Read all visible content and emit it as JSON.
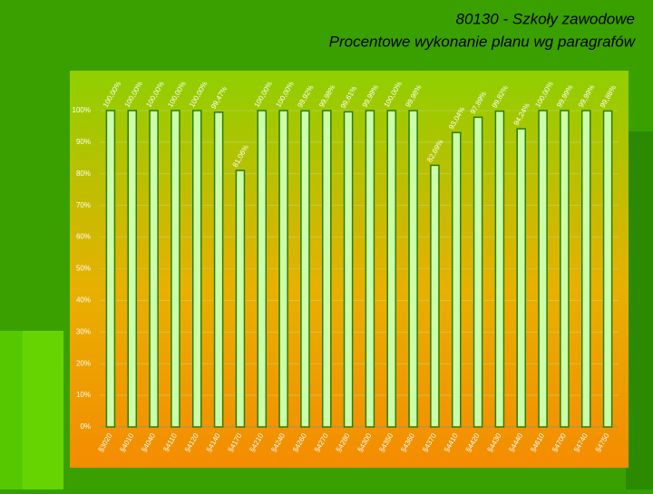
{
  "chart_data": {
    "type": "bar",
    "title": "80130 - Szkoły zawodowe",
    "subtitle": "Procentowe wykonanie planu wg paragrafów",
    "categories": [
      "§3020",
      "§4010",
      "§4040",
      "§4110",
      "§4120",
      "§4140",
      "§4170",
      "§4210",
      "§4240",
      "§4260",
      "§4270",
      "§4280",
      "§4300",
      "§4350",
      "§4360",
      "§4370",
      "§4410",
      "§4420",
      "§4430",
      "§4440",
      "§4610",
      "§4700",
      "§4740",
      "§4750"
    ],
    "values": [
      100,
      100,
      100,
      100,
      100,
      99.47,
      81.06,
      100,
      100,
      99.92,
      99.98,
      99.61,
      99.99,
      100,
      99.98,
      82.69,
      93.04,
      97.89,
      99.82,
      94.24,
      100,
      99.99,
      99.99,
      99.88
    ],
    "value_labels": [
      "100,00%",
      "100,00%",
      "100,00%",
      "100,00%",
      "100,00%",
      "99,47%",
      "81,06%",
      "100,00%",
      "100,00%",
      "99,92%",
      "99,98%",
      "99,61%",
      "99,99%",
      "100,00%",
      "99,98%",
      "82,69%",
      "93,04%",
      "97,89%",
      "99,82%",
      "94,24%",
      "100,00%",
      "99,99%",
      "99,99%",
      "99,88%"
    ],
    "color": "#ccffaa",
    "ylim": [
      0,
      100
    ],
    "yticks": [
      {
        "value": 0,
        "label": "0%"
      },
      {
        "value": 10,
        "label": "10%"
      },
      {
        "value": 20,
        "label": "20%"
      },
      {
        "value": 30,
        "label": "30%"
      },
      {
        "value": 40,
        "label": "40%"
      },
      {
        "value": 50,
        "label": "50%"
      },
      {
        "value": 60,
        "label": "60%"
      },
      {
        "value": 70,
        "label": "70%"
      },
      {
        "value": 80,
        "label": "80%"
      },
      {
        "value": 90,
        "label": "90%"
      },
      {
        "value": 100,
        "label": "100%"
      }
    ],
    "grid": true
  }
}
